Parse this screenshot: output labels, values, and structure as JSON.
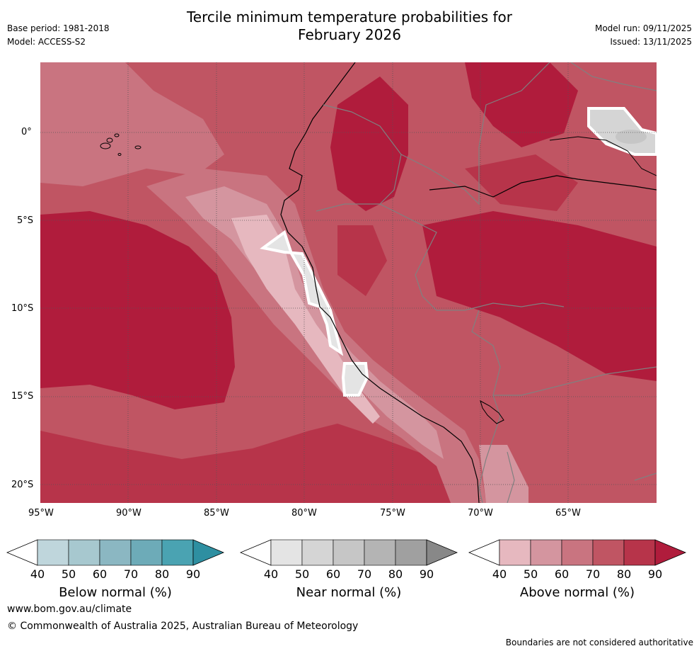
{
  "header": {
    "title_line1": "Tercile minimum temperature probabilities for",
    "title_line2": "February 2026",
    "base_period": "Base period: 1981-2018",
    "model": "Model: ACCESS-S2",
    "model_run": "Model run: 09/11/2025",
    "issued": "Issued: 13/11/2025"
  },
  "map": {
    "lat_ticks": [
      "0°",
      "5°S",
      "10°S",
      "15°S",
      "20°S"
    ],
    "lon_ticks": [
      "95°W",
      "90°W",
      "85°W",
      "80°W",
      "75°W",
      "70°W",
      "65°W"
    ]
  },
  "colorbars": {
    "ticks": [
      "40",
      "50",
      "60",
      "70",
      "80",
      "90"
    ],
    "below": {
      "label": "Below normal (%)",
      "colors": [
        "#bfd6dc",
        "#a7c8cf",
        "#8bb7c2",
        "#6dabb8",
        "#4aa3b2",
        "#2e8fa1"
      ]
    },
    "near": {
      "label": "Near normal (%)",
      "colors": [
        "#e4e4e4",
        "#d5d5d5",
        "#c6c6c6",
        "#b4b4b4",
        "#a0a0a0",
        "#888888"
      ]
    },
    "above": {
      "label": "Above normal (%)",
      "colors": [
        "#e6b8bf",
        "#d4959f",
        "#c97480",
        "#c05563",
        "#b7344a",
        "#b01c3c"
      ]
    }
  },
  "footer": {
    "website": "www.bom.gov.au/climate",
    "copyright": "© Commonwealth of Australia 2025, Australian Bureau of Meteorology",
    "disclaimer": "Boundaries are not considered authoritative"
  }
}
